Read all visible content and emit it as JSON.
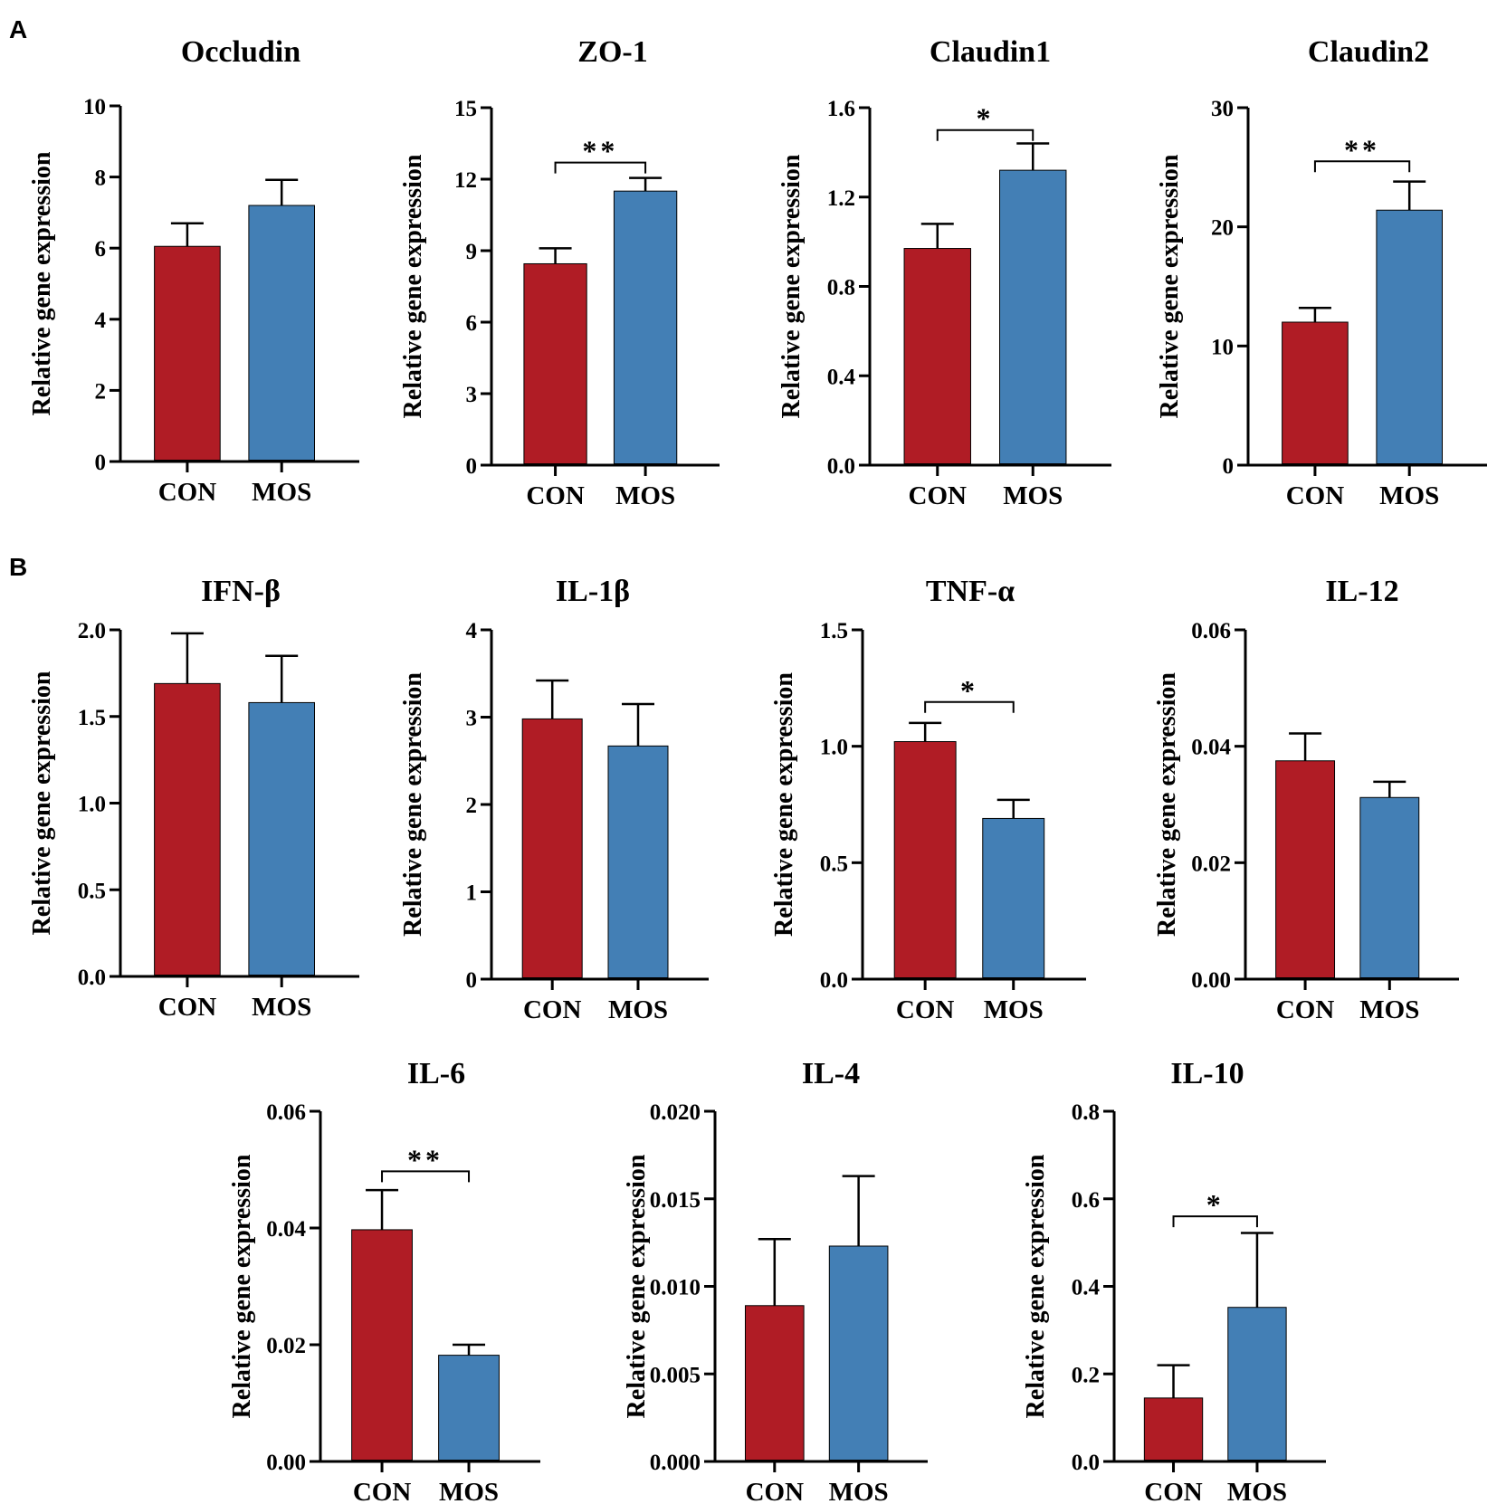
{
  "figure": {
    "panel_labels": [
      "A",
      "B"
    ]
  },
  "colors": {
    "CON": "#b01c25",
    "MOS": "#437fb5",
    "axis": "#000000"
  },
  "chart_data": [
    {
      "type": "bar",
      "title": "Occludin",
      "ylabel": "Relative gene expression",
      "categories": [
        "CON",
        "MOS"
      ],
      "values": [
        6.05,
        7.2
      ],
      "errors": [
        0.65,
        0.72
      ],
      "ylim": [
        0,
        10
      ],
      "yticks": [
        "0",
        "2",
        "4",
        "6",
        "8",
        "10"
      ],
      "significance": ""
    },
    {
      "type": "bar",
      "title": "ZO-1",
      "ylabel": "Relative gene expression",
      "categories": [
        "CON",
        "MOS"
      ],
      "values": [
        8.45,
        11.5
      ],
      "errors": [
        0.65,
        0.55
      ],
      "ylim": [
        0,
        15
      ],
      "yticks": [
        "0",
        "3",
        "6",
        "9",
        "12",
        "15"
      ],
      "significance": "**",
      "sig_y": 12.7
    },
    {
      "type": "bar",
      "title": "Claudin1",
      "ylabel": "Relative gene expression",
      "categories": [
        "CON",
        "MOS"
      ],
      "values": [
        0.97,
        1.32
      ],
      "errors": [
        0.11,
        0.12
      ],
      "ylim": [
        0,
        1.6
      ],
      "yticks": [
        "0.0",
        "0.4",
        "0.8",
        "1.2",
        "1.6"
      ],
      "significance": "*",
      "sig_y": 1.5
    },
    {
      "type": "bar",
      "title": "Claudin2",
      "ylabel": "Relative gene expression",
      "categories": [
        "CON",
        "MOS"
      ],
      "values": [
        12.0,
        21.4
      ],
      "errors": [
        1.2,
        2.4
      ],
      "ylim": [
        0,
        30
      ],
      "yticks": [
        "0",
        "10",
        "20",
        "30"
      ],
      "significance": "**",
      "sig_y": 25.5
    },
    {
      "type": "bar",
      "title": "IFN-β",
      "ylabel": "Relative gene expression",
      "categories": [
        "CON",
        "MOS"
      ],
      "values": [
        1.69,
        1.58
      ],
      "errors": [
        0.29,
        0.27
      ],
      "ylim": [
        0,
        2.0
      ],
      "yticks": [
        "0.0",
        "0.5",
        "1.0",
        "1.5",
        "2.0"
      ],
      "significance": ""
    },
    {
      "type": "bar",
      "title": "IL-1β",
      "ylabel": "Relative gene expression",
      "categories": [
        "CON",
        "MOS"
      ],
      "values": [
        2.98,
        2.67
      ],
      "errors": [
        0.44,
        0.48
      ],
      "ylim": [
        0,
        4
      ],
      "yticks": [
        "0",
        "1",
        "2",
        "3",
        "4"
      ],
      "significance": ""
    },
    {
      "type": "bar",
      "title": "TNF-α",
      "ylabel": "Relative gene expression",
      "categories": [
        "CON",
        "MOS"
      ],
      "values": [
        1.02,
        0.69
      ],
      "errors": [
        0.08,
        0.08
      ],
      "ylim": [
        0,
        1.5
      ],
      "yticks": [
        "0.0",
        "0.5",
        "1.0",
        "1.5"
      ],
      "significance": "*",
      "sig_y": 1.19
    },
    {
      "type": "bar",
      "title": "IL-12",
      "ylabel": "Relative gene expression",
      "categories": [
        "CON",
        "MOS"
      ],
      "values": [
        0.0375,
        0.0312
      ],
      "errors": [
        0.0047,
        0.0027
      ],
      "ylim": [
        0,
        0.06
      ],
      "yticks": [
        "0.00",
        "0.02",
        "0.04",
        "0.06"
      ],
      "significance": ""
    },
    {
      "type": "bar",
      "title": "IL-6",
      "ylabel": "Relative gene expression",
      "categories": [
        "CON",
        "MOS"
      ],
      "values": [
        0.0397,
        0.0182
      ],
      "errors": [
        0.0068,
        0.0018
      ],
      "ylim": [
        0,
        0.06
      ],
      "yticks": [
        "0.00",
        "0.02",
        "0.04",
        "0.06"
      ],
      "significance": "**",
      "sig_y": 0.0497
    },
    {
      "type": "bar",
      "title": "IL-4",
      "ylabel": "Relative gene expression",
      "categories": [
        "CON",
        "MOS"
      ],
      "values": [
        0.0089,
        0.0123
      ],
      "errors": [
        0.0038,
        0.004
      ],
      "ylim": [
        0,
        0.02
      ],
      "yticks": [
        "0.000",
        "0.005",
        "0.010",
        "0.015",
        "0.020"
      ],
      "significance": ""
    },
    {
      "type": "bar",
      "title": "IL-10",
      "ylabel": "Relative gene expression",
      "categories": [
        "CON",
        "MOS"
      ],
      "values": [
        0.145,
        0.352
      ],
      "errors": [
        0.075,
        0.17
      ],
      "ylim": [
        0,
        0.8
      ],
      "yticks": [
        "0.0",
        "0.2",
        "0.4",
        "0.6",
        "0.8"
      ],
      "significance": "*",
      "sig_y": 0.56
    }
  ]
}
